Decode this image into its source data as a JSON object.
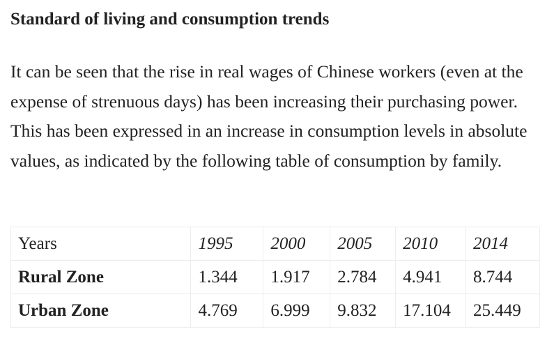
{
  "article": {
    "heading": "Standard of living and consumption trends",
    "paragraph": "It can be seen that the rise in real wages of Chinese workers (even at the expense of strenuous days) has been increasing their purchasing power. This has been expressed in an increase in consumption levels in absolute values, as indicated by the following table of consumption by family."
  },
  "table": {
    "header_label": "Years",
    "years": [
      "1995",
      "2000",
      "2005",
      "2010",
      "2014"
    ],
    "rows": [
      {
        "label": "Rural Zone",
        "values": [
          "1.344",
          "1.917",
          "2.784",
          "4.941",
          "8.744"
        ]
      },
      {
        "label": "Urban Zone",
        "values": [
          "4.769",
          "6.999",
          "9.832",
          "17.104",
          "25.449"
        ]
      }
    ]
  }
}
